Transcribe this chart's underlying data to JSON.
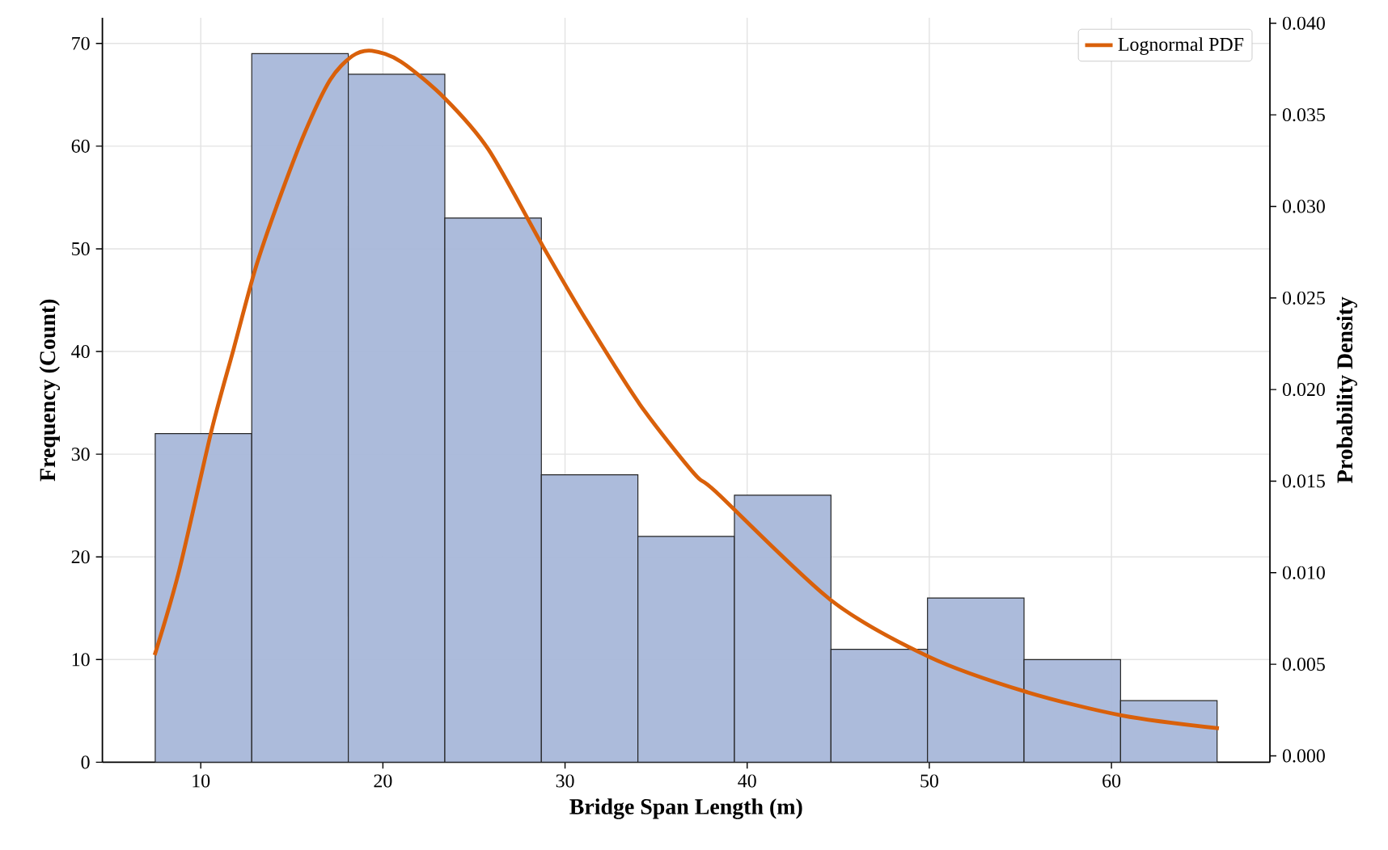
{
  "chart_data": {
    "type": "histogram",
    "xlabel": "Bridge Span Length (m)",
    "ylabel": "Frequency (Count)",
    "y2label": "Probability Density",
    "series": [
      {
        "color": "#a8b7d9",
        "bins": [
          7.5,
          12.8,
          18.1,
          23.4,
          28.7,
          34.0,
          39.3,
          44.6,
          49.9,
          55.2,
          60.5,
          65.8
        ],
        "values": [
          32,
          69,
          67,
          53,
          28,
          22,
          26,
          11,
          16,
          10,
          6
        ]
      },
      {
        "type": "line",
        "name": "Lognormal PDF",
        "axis": "y2",
        "color": "#d9600a",
        "x": [
          7.47,
          8.81,
          10.6,
          11.8,
          13.0,
          14.2,
          15.7,
          17.1,
          18.3,
          19.4,
          21.0,
          23.4,
          25.8,
          28.8,
          31.1,
          34.1,
          37.1,
          38.3,
          44.6,
          50.0,
          55.3,
          60.6,
          65.9
        ],
        "values": [
          0.0055,
          0.0101,
          0.0178,
          0.0222,
          0.0266,
          0.0301,
          0.034,
          0.0369,
          0.0382,
          0.0385,
          0.0379,
          0.0359,
          0.0331,
          0.0278,
          0.0239,
          0.0192,
          0.0154,
          0.0144,
          0.0085,
          0.0054,
          0.0035,
          0.0022,
          0.0015
        ]
      }
    ],
    "xlim": [
      4.6,
      68.7
    ],
    "ylim": [
      0,
      72.5
    ],
    "y2lim": [
      -0.00035,
      0.0403
    ],
    "xticks": [
      10,
      20,
      30,
      40,
      50,
      60
    ],
    "yticks": [
      0,
      10,
      20,
      30,
      40,
      50,
      60,
      70
    ],
    "y2ticks": [
      {
        "value": 0,
        "label": "0.000"
      },
      {
        "value": 0.005,
        "label": "0.005"
      },
      {
        "value": 0.01,
        "label": "0.010"
      },
      {
        "value": 0.015,
        "label": "0.015"
      },
      {
        "value": 0.02,
        "label": "0.020"
      },
      {
        "value": 0.025,
        "label": "0.025"
      },
      {
        "value": 0.03,
        "label": "0.030"
      },
      {
        "value": 0.035,
        "label": "0.035"
      },
      {
        "value": 0.04,
        "label": "0.040"
      }
    ],
    "grid": true,
    "legend": "top right"
  }
}
